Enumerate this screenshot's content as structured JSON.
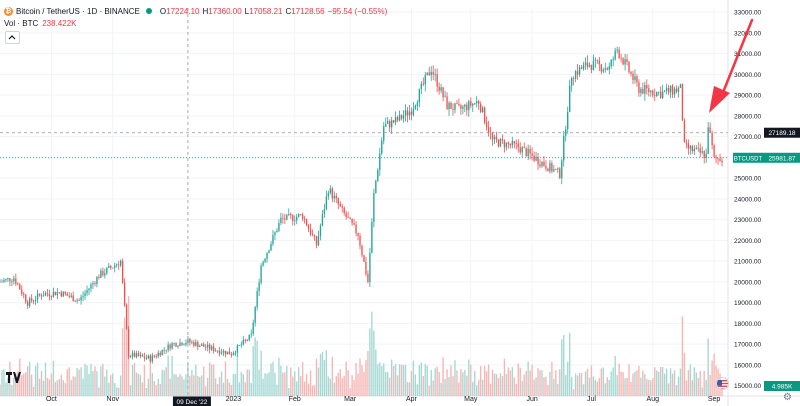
{
  "legend": {
    "symbol": "Bitcoin / TetherUS · 1D · BINANCE",
    "open_label": "O",
    "open": "17224.10",
    "high_label": "H",
    "high": "17360.00",
    "low_label": "L",
    "low": "17058.21",
    "close_label": "C",
    "close": "17128.56",
    "change": "−95.54 (−0.55%)",
    "vol_label": "Vol · BTC",
    "vol_value": "238.422K"
  },
  "colors": {
    "up": "#26a69a",
    "down": "#ef5350",
    "vol_up": "#a5d8d3",
    "vol_down": "#f5b6b4",
    "annotation": "#f23645",
    "grid": "#f0f3fa",
    "label_dark": "#131722",
    "label_green": "#089981",
    "crosshair": "#9598a1"
  },
  "crosshair": {
    "date_label": "09 Dec '22"
  },
  "price_labels": {
    "crosshair": "27189.18",
    "current_symbol": "BTCUSDT",
    "current": "25981.87",
    "volume": "4.985K"
  },
  "chart_data": {
    "type": "candlestick",
    "series_name": "BTCUSDT",
    "ylim": [
      14500,
      33200
    ],
    "y_ticks": [
      15000,
      16000,
      17000,
      18000,
      19000,
      20000,
      21000,
      22000,
      23000,
      24000,
      25000,
      26000,
      27000,
      28000,
      29000,
      30000,
      31000,
      32000,
      33000
    ],
    "y_tick_labels": [
      "15000.00",
      "16000.00",
      "17000.00",
      "18000.00",
      "19000.00",
      "20000.00",
      "21000.00",
      "22000.00",
      "23000.00",
      "24000.00",
      "25000.00",
      "26000.00",
      "27000.00",
      "28000.00",
      "29000.00",
      "30000.00",
      "31000.00",
      "32000.00",
      "33000.00"
    ],
    "x_range": [
      "2022-09-05",
      "2023-09-05"
    ],
    "x_ticks": [
      {
        "label": "Oct",
        "date": "2022-10-01"
      },
      {
        "label": "Nov",
        "date": "2022-11-01"
      },
      {
        "label": "2023",
        "date": "2023-01-01"
      },
      {
        "label": "Feb",
        "date": "2023-02-01"
      },
      {
        "label": "Mar",
        "date": "2023-03-01"
      },
      {
        "label": "Apr",
        "date": "2023-04-01"
      },
      {
        "label": "May",
        "date": "2023-05-01"
      },
      {
        "label": "Jun",
        "date": "2023-06-01"
      },
      {
        "label": "Jul",
        "date": "2023-07-01"
      },
      {
        "label": "Aug",
        "date": "2023-08-01"
      },
      {
        "label": "Sep",
        "date": "2023-09-01"
      }
    ],
    "close_path": [
      {
        "date": "2022-09-05",
        "value": 20000
      },
      {
        "date": "2022-09-12",
        "value": 20200
      },
      {
        "date": "2022-09-19",
        "value": 19000
      },
      {
        "date": "2022-09-26",
        "value": 19400
      },
      {
        "date": "2022-10-05",
        "value": 19500
      },
      {
        "date": "2022-10-15",
        "value": 19100
      },
      {
        "date": "2022-10-25",
        "value": 20300
      },
      {
        "date": "2022-11-05",
        "value": 21000
      },
      {
        "date": "2022-11-09",
        "value": 16500
      },
      {
        "date": "2022-11-20",
        "value": 16300
      },
      {
        "date": "2022-12-01",
        "value": 17000
      },
      {
        "date": "2022-12-09",
        "value": 17130
      },
      {
        "date": "2022-12-20",
        "value": 16800
      },
      {
        "date": "2022-12-31",
        "value": 16550
      },
      {
        "date": "2023-01-10",
        "value": 17400
      },
      {
        "date": "2023-01-15",
        "value": 20800
      },
      {
        "date": "2023-01-25",
        "value": 23000
      },
      {
        "date": "2023-02-05",
        "value": 23200
      },
      {
        "date": "2023-02-12",
        "value": 21800
      },
      {
        "date": "2023-02-18",
        "value": 24500
      },
      {
        "date": "2023-02-25",
        "value": 23400
      },
      {
        "date": "2023-03-05",
        "value": 22300
      },
      {
        "date": "2023-03-10",
        "value": 20000
      },
      {
        "date": "2023-03-13",
        "value": 24200
      },
      {
        "date": "2023-03-18",
        "value": 27500
      },
      {
        "date": "2023-03-25",
        "value": 27800
      },
      {
        "date": "2023-04-01",
        "value": 28300
      },
      {
        "date": "2023-04-11",
        "value": 30300
      },
      {
        "date": "2023-04-19",
        "value": 28500
      },
      {
        "date": "2023-04-25",
        "value": 28300
      },
      {
        "date": "2023-05-05",
        "value": 28700
      },
      {
        "date": "2023-05-12",
        "value": 26800
      },
      {
        "date": "2023-05-25",
        "value": 26500
      },
      {
        "date": "2023-06-05",
        "value": 25800
      },
      {
        "date": "2023-06-15",
        "value": 25200
      },
      {
        "date": "2023-06-21",
        "value": 30000
      },
      {
        "date": "2023-06-30",
        "value": 30500
      },
      {
        "date": "2023-07-10",
        "value": 30300
      },
      {
        "date": "2023-07-14",
        "value": 31200
      },
      {
        "date": "2023-07-25",
        "value": 29300
      },
      {
        "date": "2023-08-05",
        "value": 29100
      },
      {
        "date": "2023-08-15",
        "value": 29300
      },
      {
        "date": "2023-08-17",
        "value": 26500
      },
      {
        "date": "2023-08-28",
        "value": 26100
      },
      {
        "date": "2023-08-29",
        "value": 27600
      },
      {
        "date": "2023-09-01",
        "value": 25900
      },
      {
        "date": "2023-09-05",
        "value": 25981.87
      }
    ],
    "crosshair_price": 27189.18,
    "current_price": 25981.87,
    "crosshair_date": "2022-12-09"
  }
}
